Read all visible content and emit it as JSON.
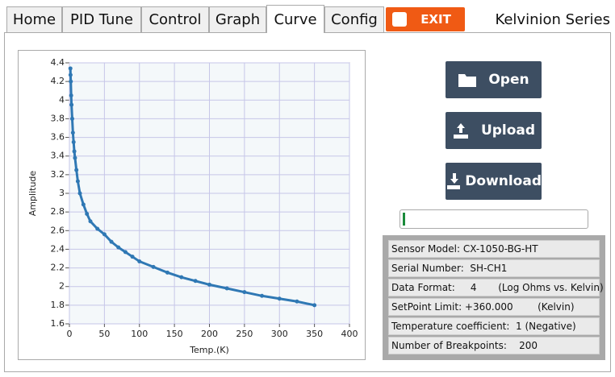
{
  "tabs": [
    "Home",
    "PID Tune",
    "Control",
    "Graph",
    "Curve",
    "Config"
  ],
  "exit_button": "EXIT",
  "brand": "Kelvinion Series",
  "buttons": [
    "Open",
    "Upload",
    "Download"
  ],
  "info": [
    "Sensor Model: CX-1050-BG-HT",
    "Serial Number:  SH-CH1",
    "Data Format:     4       (Log Ohms vs. Kelvin)",
    "SetPoint Limit: +360.000        (Kelvin)",
    "Temperature coefficient:  1 (Negative)",
    "Number of Breakpoints:    200"
  ],
  "chart_data": {
    "type": "line",
    "markers": true,
    "color": "#2f78b4",
    "xlabel": "Temp.(K)",
    "ylabel": "Amplitude",
    "x": [
      1.4,
      1.6,
      2,
      2.5,
      3,
      4,
      5,
      6,
      7,
      8,
      10,
      12,
      15,
      20,
      25,
      30,
      40,
      50,
      60,
      70,
      80,
      90,
      100,
      120,
      140,
      160,
      180,
      200,
      225,
      250,
      275,
      300,
      325,
      350
    ],
    "values": [
      4.34,
      4.27,
      4.2,
      4.05,
      3.95,
      3.8,
      3.65,
      3.55,
      3.45,
      3.38,
      3.25,
      3.13,
      3.0,
      2.88,
      2.78,
      2.7,
      2.62,
      2.56,
      2.48,
      2.42,
      2.37,
      2.32,
      2.27,
      2.21,
      2.15,
      2.1,
      2.06,
      2.02,
      1.98,
      1.94,
      1.9,
      1.87,
      1.84,
      1.8
    ],
    "xlim": [
      0,
      400
    ],
    "xticks": [
      0,
      50,
      100,
      150,
      200,
      250,
      300,
      350,
      400
    ],
    "ylim": [
      1.6,
      4.4
    ],
    "yticks": [
      1.6,
      1.8,
      2,
      2.2,
      2.4,
      2.6,
      2.8,
      3,
      3.2,
      3.4,
      3.6,
      3.8,
      4,
      4.2,
      4.4
    ],
    "grid": true
  }
}
